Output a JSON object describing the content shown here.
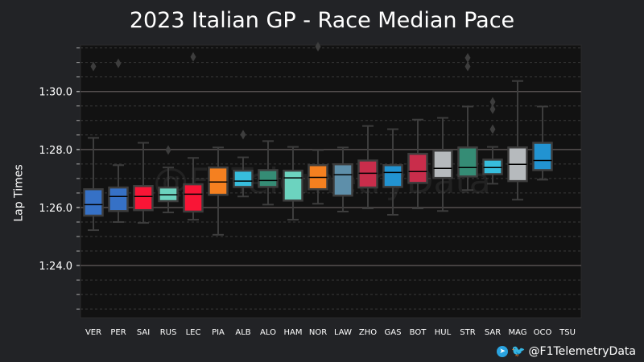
{
  "chart_data": {
    "type": "box",
    "title": "2023 Italian GP - Race Median Pace",
    "xlabel": "",
    "ylabel": "Lap Times",
    "ylim": [
      82.2,
      91.6
    ],
    "y_ticks": [
      {
        "v": 84,
        "label": "1:24.0"
      },
      {
        "v": 86,
        "label": "1:26.0"
      },
      {
        "v": 88,
        "label": "1:28.0"
      },
      {
        "v": 90,
        "label": "1:30.0"
      }
    ],
    "grid": true,
    "watermark": "@F1TelemetryData",
    "drivers": [
      {
        "name": "VER",
        "color": "#3671C6",
        "wl": 85.22,
        "q1": 85.72,
        "med": 86.1,
        "q3": 86.63,
        "wh": 88.4,
        "out": [
          90.86
        ]
      },
      {
        "name": "PER",
        "color": "#3671C6",
        "wl": 85.5,
        "q1": 85.88,
        "med": 86.38,
        "q3": 86.69,
        "wh": 87.46,
        "out": [
          90.97
        ]
      },
      {
        "name": "SAI",
        "color": "#F91536",
        "wl": 85.47,
        "q1": 85.91,
        "med": 86.38,
        "q3": 86.74,
        "wh": 88.23,
        "out": []
      },
      {
        "name": "RUS",
        "color": "#6CD3BF",
        "wl": 85.83,
        "q1": 86.22,
        "med": 86.44,
        "q3": 86.69,
        "wh": 87.38,
        "out": [
          87.98
        ]
      },
      {
        "name": "LEC",
        "color": "#F91536",
        "wl": 85.58,
        "q1": 85.86,
        "med": 86.46,
        "q3": 86.8,
        "wh": 87.71,
        "out": [
          91.19
        ]
      },
      {
        "name": "PIA",
        "color": "#F58020",
        "wl": 85.06,
        "q1": 86.44,
        "med": 86.88,
        "q3": 87.38,
        "wh": 88.07,
        "out": []
      },
      {
        "name": "ALB",
        "color": "#37BEDD",
        "wl": 86.38,
        "q1": 86.71,
        "med": 86.91,
        "q3": 87.27,
        "wh": 87.73,
        "out": [
          88.51
        ]
      },
      {
        "name": "ALO",
        "color": "#358C75",
        "wl": 86.1,
        "q1": 86.71,
        "med": 86.93,
        "q3": 87.29,
        "wh": 88.29,
        "out": []
      },
      {
        "name": "HAM",
        "color": "#6CD3BF",
        "wl": 85.58,
        "q1": 86.24,
        "med": 87.02,
        "q3": 87.27,
        "wh": 88.09,
        "out": []
      },
      {
        "name": "NOR",
        "color": "#F58020",
        "wl": 86.13,
        "q1": 86.63,
        "med": 87.04,
        "q3": 87.46,
        "wh": 87.98,
        "out": [
          91.6
        ]
      },
      {
        "name": "LAW",
        "color": "#5E8FAA",
        "wl": 85.86,
        "q1": 86.41,
        "med": 87.13,
        "q3": 87.49,
        "wh": 88.07,
        "out": []
      },
      {
        "name": "ZHO",
        "color": "#C92D4B",
        "wl": 85.97,
        "q1": 86.69,
        "med": 87.18,
        "q3": 87.62,
        "wh": 88.81,
        "out": []
      },
      {
        "name": "GAS",
        "color": "#2293D1",
        "wl": 85.75,
        "q1": 86.71,
        "med": 87.21,
        "q3": 87.46,
        "wh": 88.7,
        "out": []
      },
      {
        "name": "BOT",
        "color": "#C92D4B",
        "wl": 85.97,
        "q1": 86.85,
        "med": 87.24,
        "q3": 87.85,
        "wh": 89.03,
        "out": []
      },
      {
        "name": "HUL",
        "color": "#B6BABD",
        "wl": 85.88,
        "q1": 87.02,
        "med": 87.35,
        "q3": 87.96,
        "wh": 89.09,
        "out": []
      },
      {
        "name": "STR",
        "color": "#358C75",
        "wl": 86.6,
        "q1": 87.07,
        "med": 87.38,
        "q3": 88.07,
        "wh": 89.48,
        "out": [
          91.16,
          90.86
        ]
      },
      {
        "name": "SAR",
        "color": "#37BEDD",
        "wl": 86.82,
        "q1": 87.15,
        "med": 87.38,
        "q3": 87.65,
        "wh": 88.09,
        "out": [
          89.64,
          89.39,
          88.7
        ]
      },
      {
        "name": "MAG",
        "color": "#B6BABD",
        "wl": 86.27,
        "q1": 86.91,
        "med": 87.49,
        "q3": 88.07,
        "wh": 90.36,
        "out": []
      },
      {
        "name": "OCO",
        "color": "#2293D1",
        "wl": 86.96,
        "q1": 87.29,
        "med": 87.62,
        "q3": 88.23,
        "wh": 89.48,
        "out": []
      },
      {
        "name": "TSU",
        "color": "#5E8FAA",
        "wl": null,
        "q1": null,
        "med": null,
        "q3": null,
        "wh": null,
        "out": []
      }
    ]
  },
  "footer": {
    "handle": "@F1TelemetryData",
    "icons": [
      "telegram-icon",
      "twitter-icon"
    ]
  }
}
